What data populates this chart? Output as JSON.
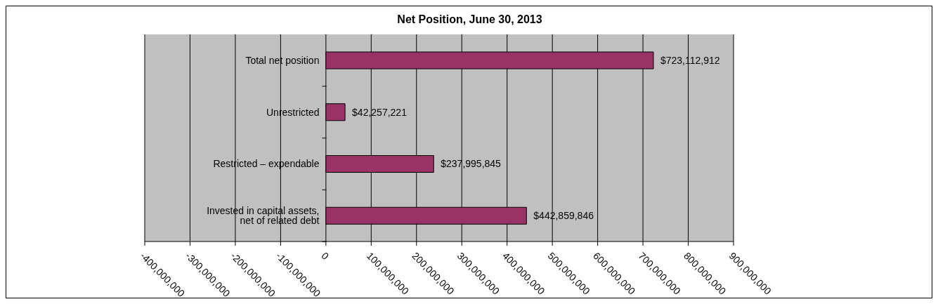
{
  "chart_data": {
    "type": "bar",
    "orientation": "horizontal",
    "title": "Net Position, June 30, 2013",
    "categories": [
      "Total net position",
      "Unrestricted",
      "Restricted – expendable",
      "Invested in capital assets, net of related debt"
    ],
    "values": [
      723112912,
      42257221,
      237995845,
      442859846
    ],
    "value_labels": [
      "$723,112,912",
      "$42,257,221",
      "$237,995,845",
      "$442,859,846"
    ],
    "color": "#993366",
    "xlim": [
      -400000000,
      900000000
    ],
    "xticks": [
      {
        "value": -400000000,
        "label": "-400,000,000"
      },
      {
        "value": -300000000,
        "label": "-300,000,000"
      },
      {
        "value": -200000000,
        "label": "-200,000,000"
      },
      {
        "value": -100000000,
        "label": "-100,000,000"
      },
      {
        "value": 0,
        "label": "0"
      },
      {
        "value": 100000000,
        "label": "100,000,000"
      },
      {
        "value": 200000000,
        "label": "200,000,000"
      },
      {
        "value": 300000000,
        "label": "300,000,000"
      },
      {
        "value": 400000000,
        "label": "400,000,000"
      },
      {
        "value": 500000000,
        "label": "500,000,000"
      },
      {
        "value": 600000000,
        "label": "600,000,000"
      },
      {
        "value": 700000000,
        "label": "700,000,000"
      },
      {
        "value": 800000000,
        "label": "800,000,000"
      },
      {
        "value": 900000000,
        "label": "900,000,000"
      }
    ],
    "grid": "x",
    "legend": false
  }
}
